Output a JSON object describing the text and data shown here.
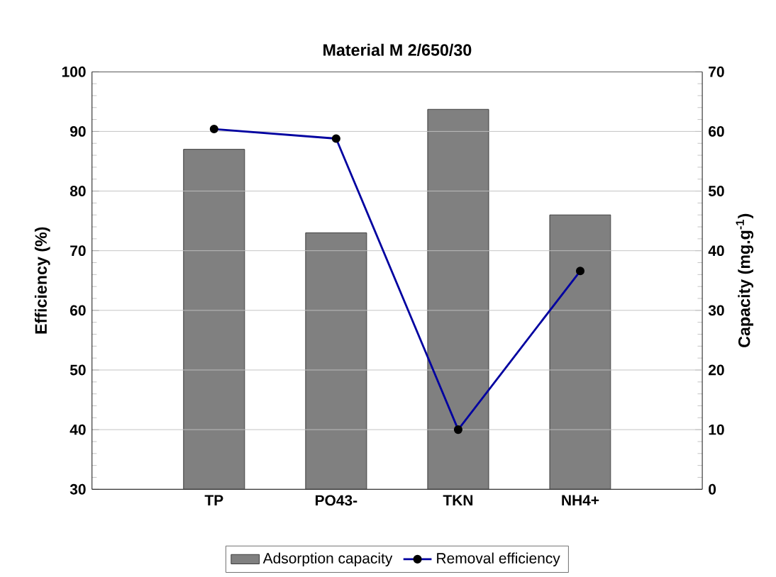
{
  "chart_data": {
    "type": "bar",
    "title": "Material M 2/650/30",
    "categories": [
      "TP",
      "PO43-",
      "TKN",
      "NH4+"
    ],
    "series": [
      {
        "name": "Adsorption capacity",
        "type": "bar",
        "axis": "y2",
        "color": "#808080",
        "values": [
          57,
          43,
          63.7,
          46
        ]
      },
      {
        "name": "Removal efficiency",
        "type": "line",
        "color": "#0000a0",
        "marker": "circle",
        "line_style": "solid",
        "values": [
          90.4,
          88.8,
          40,
          66.6
        ]
      }
    ],
    "ylabel": "Efficiency (%)",
    "y2label": "Capacity (mg.g$^{-1}$)",
    "ylim": [
      30,
      100
    ],
    "yticks": [
      30,
      40,
      50,
      60,
      70,
      80,
      90,
      100
    ],
    "y2lim": [
      0,
      70
    ],
    "y2ticks": [
      0,
      10,
      20,
      30,
      40,
      50,
      60,
      70
    ],
    "grid": "y",
    "legend": "bottom"
  }
}
